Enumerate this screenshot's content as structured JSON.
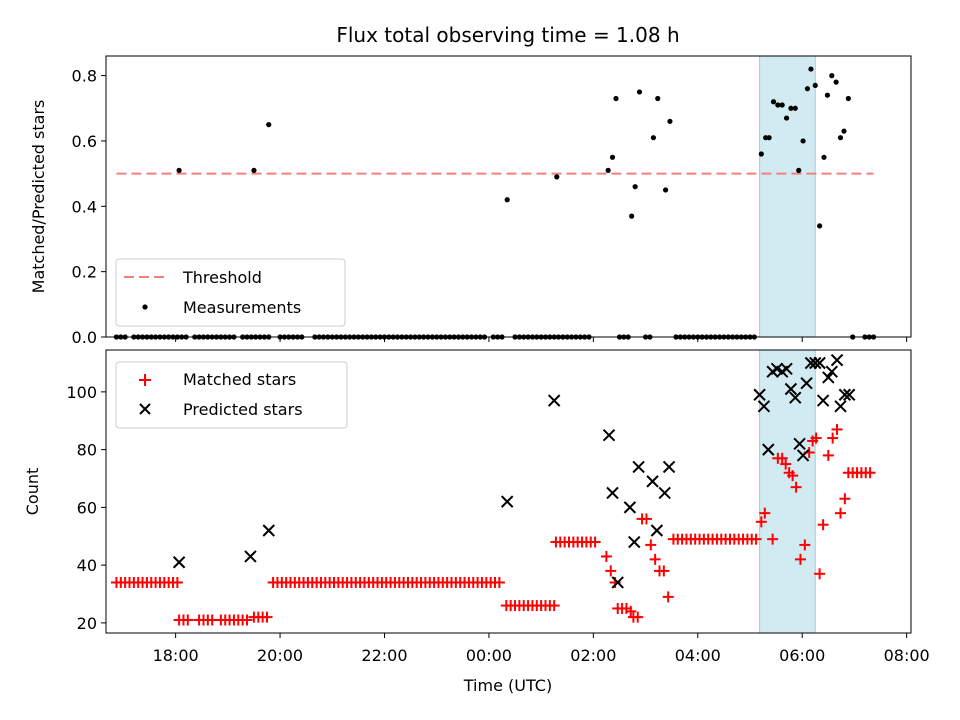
{
  "chart_data": [
    {
      "type": "scatter",
      "title": "Flux total observing time = 1.08 h",
      "xlabel": "",
      "ylabel": "Matched/Predicted stars",
      "xlim": [
        "16:40",
        "08:05"
      ],
      "ylim": [
        0,
        0.86
      ],
      "yticks": [
        "0.0",
        "0.2",
        "0.4",
        "0.6",
        "0.8"
      ],
      "yticks_values": [
        0,
        0.2,
        0.4,
        0.6,
        0.8
      ],
      "highlight_span": [
        "05:11",
        "06:15"
      ],
      "highlight_color": "#add8e6",
      "threshold": {
        "name": "Threshold",
        "value": 0.5,
        "x_start": "16:52",
        "x_end": "07:22",
        "color": "#f08080"
      },
      "legend": {
        "placement": "lower-left",
        "entries": [
          "Threshold",
          "Measurements"
        ]
      },
      "series": [
        {
          "name": "Measurements",
          "color": "#000000",
          "points": [
            [
              "18:04",
              0.51
            ],
            [
              "19:30",
              0.51
            ],
            [
              "19:47",
              0.65
            ],
            [
              "00:21",
              0.42
            ],
            [
              "01:18",
              0.49
            ],
            [
              "02:17",
              0.51
            ],
            [
              "02:22",
              0.55
            ],
            [
              "02:26",
              0.73
            ],
            [
              "02:44",
              0.37
            ],
            [
              "02:48",
              0.46
            ],
            [
              "02:53",
              0.75
            ],
            [
              "03:09",
              0.61
            ],
            [
              "03:14",
              0.73
            ],
            [
              "03:23",
              0.45
            ],
            [
              "03:28",
              0.66
            ],
            [
              "05:13",
              0.56
            ],
            [
              "05:18",
              0.61
            ],
            [
              "05:22",
              0.61
            ],
            [
              "05:27",
              0.72
            ],
            [
              "05:32",
              0.71
            ],
            [
              "05:37",
              0.71
            ],
            [
              "05:42",
              0.67
            ],
            [
              "05:47",
              0.7
            ],
            [
              "05:52",
              0.7
            ],
            [
              "05:56",
              0.51
            ],
            [
              "06:01",
              0.6
            ],
            [
              "06:06",
              0.76
            ],
            [
              "06:10",
              0.82
            ],
            [
              "06:15",
              0.77
            ],
            [
              "06:20",
              0.34
            ],
            [
              "06:25",
              0.55
            ],
            [
              "06:29",
              0.74
            ],
            [
              "06:34",
              0.8
            ],
            [
              "06:39",
              0.78
            ],
            [
              "06:44",
              0.61
            ],
            [
              "06:48",
              0.63
            ],
            [
              "06:53",
              0.73
            ]
          ],
          "zero_runs": [
            [
              "16:52",
              "17:02"
            ],
            [
              "17:12",
              "18:12"
            ],
            [
              "18:22",
              "19:07"
            ],
            [
              "19:17",
              "19:47"
            ],
            [
              "20:00",
              "20:25"
            ],
            [
              "20:40",
              "23:55"
            ],
            [
              "00:05",
              "00:15"
            ],
            [
              "00:30",
              "01:55"
            ],
            [
              "02:30",
              "02:40"
            ],
            [
              "03:00",
              "03:05"
            ],
            [
              "03:35",
              "05:05"
            ],
            [
              "06:58",
              "07:02"
            ],
            [
              "07:12",
              "07:22"
            ]
          ]
        }
      ]
    },
    {
      "type": "scatter",
      "title": "",
      "xlabel": "Time (UTC)",
      "ylabel": "Count",
      "xlim": [
        "16:40",
        "08:05"
      ],
      "ylim": [
        16.5,
        114.5
      ],
      "xticks": [
        "18:00",
        "20:00",
        "22:00",
        "00:00",
        "02:00",
        "04:00",
        "06:00",
        "08:00"
      ],
      "yticks": [
        "20",
        "40",
        "60",
        "80",
        "100"
      ],
      "yticks_values": [
        20,
        40,
        60,
        80,
        100
      ],
      "highlight_span": [
        "05:11",
        "06:15"
      ],
      "highlight_color": "#add8e6",
      "legend": {
        "placement": "upper-left",
        "entries": [
          "Matched stars",
          "Predicted stars"
        ]
      },
      "series": [
        {
          "name": "Matched stars",
          "marker": "plus",
          "color": "#ff0000",
          "runs": [
            {
              "from": "16:52",
              "to": "18:02",
              "y": 34
            },
            {
              "from": "18:04",
              "to": "18:14",
              "y": 21
            },
            {
              "from": "18:27",
              "to": "18:42",
              "y": 21
            },
            {
              "from": "18:52",
              "to": "19:22",
              "y": 21
            },
            {
              "from": "19:30",
              "to": "19:45",
              "y": 22
            },
            {
              "from": "19:52",
              "to": "00:12",
              "y": 34
            },
            {
              "from": "00:20",
              "to": "01:15",
              "y": 26
            },
            {
              "from": "01:17",
              "to": "02:05",
              "y": 48
            },
            {
              "from": "03:32",
              "to": "05:07",
              "y": 49
            }
          ],
          "points": [
            [
              "02:15",
              43
            ],
            [
              "02:20",
              38
            ],
            [
              "02:25",
              34
            ],
            [
              "02:28",
              25
            ],
            [
              "02:33",
              25
            ],
            [
              "02:38",
              25
            ],
            [
              "02:43",
              24
            ],
            [
              "02:46",
              22
            ],
            [
              "02:51",
              22
            ],
            [
              "02:56",
              56
            ],
            [
              "03:01",
              56
            ],
            [
              "03:06",
              47
            ],
            [
              "03:11",
              42
            ],
            [
              "03:16",
              38
            ],
            [
              "03:21",
              38
            ],
            [
              "03:26",
              29
            ],
            [
              "05:13",
              55
            ],
            [
              "05:17",
              58
            ],
            [
              "05:26",
              49
            ],
            [
              "05:32",
              77
            ],
            [
              "05:37",
              77
            ],
            [
              "05:41",
              75
            ],
            [
              "05:45",
              72
            ],
            [
              "05:49",
              71
            ],
            [
              "05:53",
              67
            ],
            [
              "05:58",
              42
            ],
            [
              "06:03",
              47
            ],
            [
              "06:08",
              79
            ],
            [
              "06:12",
              83
            ],
            [
              "06:16",
              84
            ],
            [
              "06:20",
              37
            ],
            [
              "06:24",
              54
            ],
            [
              "06:30",
              78
            ],
            [
              "06:35",
              84
            ],
            [
              "06:40",
              87
            ],
            [
              "06:44",
              58
            ],
            [
              "06:49",
              63
            ],
            [
              "06:53",
              72
            ],
            [
              "06:58",
              72
            ],
            [
              "07:03",
              72
            ],
            [
              "07:08",
              72
            ],
            [
              "07:13",
              72
            ],
            [
              "07:18",
              72
            ]
          ]
        },
        {
          "name": "Predicted stars",
          "marker": "x",
          "color": "#000000",
          "points": [
            [
              "18:04",
              41
            ],
            [
              "19:26",
              43
            ],
            [
              "19:47",
              52
            ],
            [
              "00:21",
              62
            ],
            [
              "01:15",
              97
            ],
            [
              "02:18",
              85
            ],
            [
              "02:22",
              65
            ],
            [
              "02:28",
              34
            ],
            [
              "02:42",
              60
            ],
            [
              "02:47",
              48
            ],
            [
              "02:52",
              74
            ],
            [
              "03:08",
              69
            ],
            [
              "03:13",
              52
            ],
            [
              "03:22",
              65
            ],
            [
              "03:27",
              74
            ],
            [
              "05:11",
              99
            ],
            [
              "05:16",
              95
            ],
            [
              "05:21",
              80
            ],
            [
              "05:26",
              107
            ],
            [
              "05:31",
              108
            ],
            [
              "05:37",
              107
            ],
            [
              "05:42",
              108
            ],
            [
              "05:47",
              101
            ],
            [
              "05:52",
              98
            ],
            [
              "05:57",
              82
            ],
            [
              "06:01",
              78
            ],
            [
              "06:05",
              103
            ],
            [
              "06:10",
              110
            ],
            [
              "06:15",
              110
            ],
            [
              "06:20",
              110
            ],
            [
              "06:24",
              97
            ],
            [
              "06:30",
              105
            ],
            [
              "06:34",
              107
            ],
            [
              "06:40",
              111
            ],
            [
              "06:44",
              95
            ],
            [
              "06:49",
              99
            ],
            [
              "06:54",
              99
            ]
          ]
        }
      ]
    }
  ]
}
